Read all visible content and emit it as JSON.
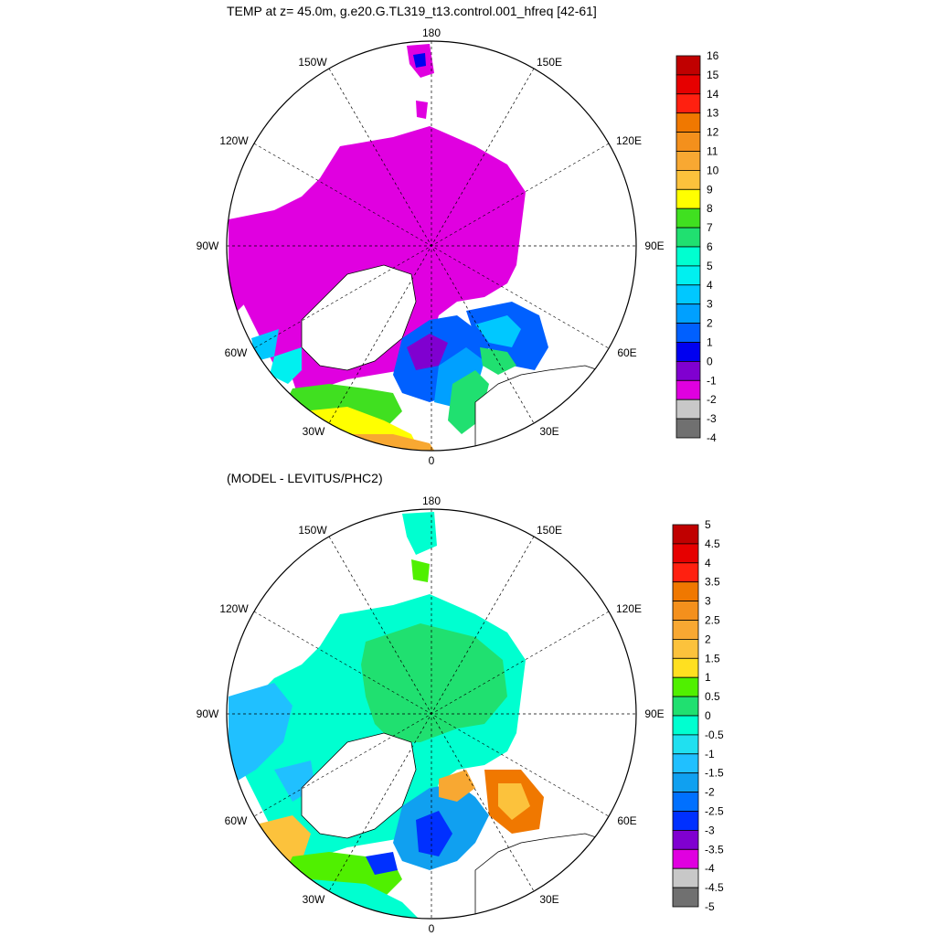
{
  "top_title": "TEMP at z=  45.0m, g.e20.G.TL319_t13.control.001_hfreq [42-61]",
  "bottom_title": "(MODEL - LEVITUS/PHC2)",
  "maps": [
    {
      "lon_labels": {
        "top": "180",
        "bottom": "0",
        "left": "90W",
        "right": "90E",
        "w150": "150W",
        "e150": "150E",
        "w120": "120W",
        "e120": "120E",
        "w60": "60W",
        "e60": "60E",
        "w30": "30W",
        "e30": "30E"
      },
      "colorbar": {
        "levels": [
          "16",
          "15",
          "14",
          "13",
          "12",
          "11",
          "10",
          "9",
          "8",
          "7",
          "6",
          "5",
          "4",
          "3",
          "2",
          "1",
          "0",
          "-1",
          "-2",
          "-3",
          "-4"
        ],
        "colors": [
          "#c00000",
          "#e60000",
          "#ff2010",
          "#f07800",
          "#f4901c",
          "#f8a832",
          "#fcc23c",
          "#ffff00",
          "#40e020",
          "#20e070",
          "#00ffd0",
          "#00f0f0",
          "#00c8ff",
          "#00a0ff",
          "#0060ff",
          "#0000f0",
          "#8000d0",
          "#e000e0",
          "#c8c8c8",
          "#707070"
        ]
      }
    },
    {
      "lon_labels": {
        "top": "180",
        "bottom": "0",
        "left": "90W",
        "right": "90E",
        "w150": "150W",
        "e150": "150E",
        "w120": "120W",
        "e120": "120E",
        "w60": "60W",
        "e60": "60E",
        "w30": "30W",
        "e30": "30E"
      },
      "colorbar": {
        "levels": [
          "5",
          "4.5",
          "4",
          "3.5",
          "3",
          "2.5",
          "2",
          "1.5",
          "1",
          "0.5",
          "0",
          "-0.5",
          "-1",
          "-1.5",
          "-2",
          "-2.5",
          "-3",
          "-3.5",
          "-4",
          "-4.5",
          "-5"
        ],
        "colors": [
          "#c00000",
          "#e60000",
          "#ff2010",
          "#f07800",
          "#f4901c",
          "#f8a832",
          "#fcc23c",
          "#ffe020",
          "#50f000",
          "#20e070",
          "#00ffd0",
          "#20e0f0",
          "#20c0ff",
          "#10a0f0",
          "#0070ff",
          "#0030ff",
          "#8000d0",
          "#e000e0",
          "#c8c8c8",
          "#707070"
        ]
      }
    }
  ]
}
